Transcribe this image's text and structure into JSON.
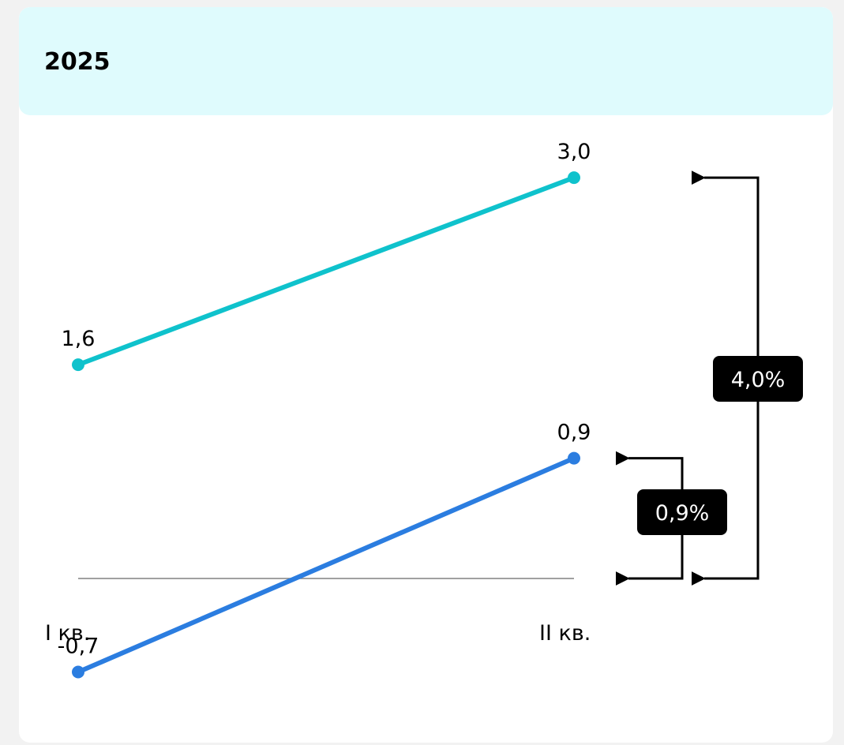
{
  "title": "2025",
  "chart_data": {
    "type": "line",
    "categories": [
      "I кв.",
      "II кв."
    ],
    "series": [
      {
        "color": "#0fc2cc",
        "values": [
          1.6,
          3.0
        ],
        "labels": [
          "1,6",
          "3,0"
        ]
      },
      {
        "color": "#2b7de0",
        "values": [
          -0.7,
          0.9
        ],
        "labels": [
          "-0,7",
          "0,9"
        ]
      }
    ],
    "zero_line": true,
    "annotations": [
      {
        "text": "4,0%",
        "from": 3.0,
        "to": 0
      },
      {
        "text": "0,9%",
        "from": 0.9,
        "to": 0
      }
    ]
  }
}
